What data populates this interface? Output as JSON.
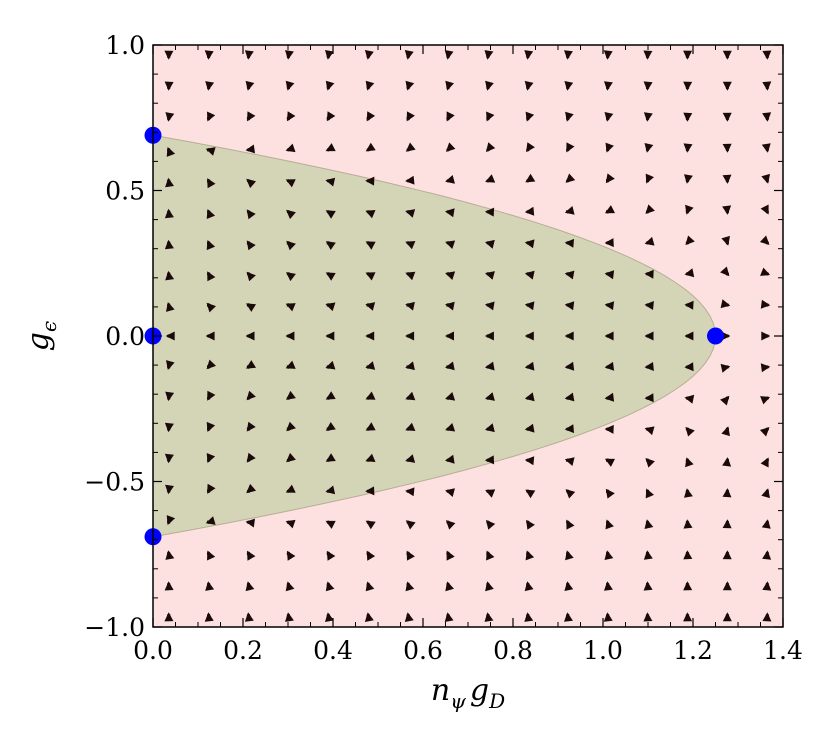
{
  "chart_data": {
    "type": "stream",
    "title": "",
    "xlabel": "nψ gD",
    "xlabel_parts": {
      "base1": "n",
      "sub1": "ψ",
      "base2": "g",
      "sub2": "D"
    },
    "ylabel": "gϵ",
    "ylabel_parts": {
      "base": "g",
      "sub": "ϵ"
    },
    "xlim": [
      0.0,
      1.4
    ],
    "ylim": [
      -1.0,
      1.0
    ],
    "x_ticks": [
      "0.0",
      "0.2",
      "0.4",
      "0.6",
      "0.8",
      "1.0",
      "1.2",
      "1.4"
    ],
    "y_ticks": [
      "−1.0",
      "−0.5",
      "0.0",
      "0.5",
      "1.0"
    ],
    "x_tick_values": [
      0.0,
      0.2,
      0.4,
      0.6,
      0.8,
      1.0,
      1.2,
      1.4
    ],
    "y_tick_values": [
      -1.0,
      -0.5,
      0.0,
      0.5,
      1.0
    ],
    "fixed_points": [
      {
        "x": 0.0,
        "y": 0.69
      },
      {
        "x": 0.0,
        "y": 0.0
      },
      {
        "x": 0.0,
        "y": -0.69
      },
      {
        "x": 1.25,
        "y": 0.0
      }
    ],
    "regions": {
      "inner_color": "#d3d5b6",
      "outer_color": "#fde0e0",
      "boundary": {
        "apex_x": 1.25,
        "edge_y": 0.69
      }
    },
    "colors": {
      "fixed_point": "#0000ff",
      "arrow": "#1a0a0a"
    }
  }
}
